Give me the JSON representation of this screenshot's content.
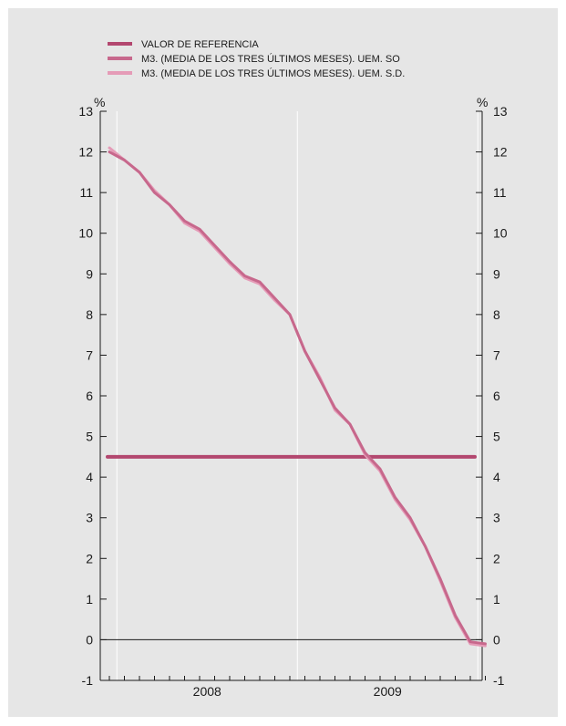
{
  "chart_data": {
    "type": "line",
    "title": "",
    "xlabel": "",
    "ylabel": "%",
    "ylabel_right": "%",
    "ylim": [
      -1,
      13
    ],
    "y_ticks": [
      "-1",
      "0",
      "1",
      "2",
      "3",
      "4",
      "5",
      "6",
      "7",
      "8",
      "9",
      "10",
      "11",
      "12",
      "13"
    ],
    "x_ticks": [
      "2008",
      "2009"
    ],
    "grid": true,
    "legend_position": "top-left",
    "colors": {
      "background": "#e6e6e6",
      "reference": "#b3476f",
      "series_so": "#c7688c",
      "series_sd": "#e59bb7"
    },
    "x": [
      "2007-12",
      "2008-01",
      "2008-02",
      "2008-03",
      "2008-04",
      "2008-05",
      "2008-06",
      "2008-07",
      "2008-08",
      "2008-09",
      "2008-10",
      "2008-11",
      "2008-12",
      "2009-01",
      "2009-02",
      "2009-03",
      "2009-04",
      "2009-05",
      "2009-06",
      "2009-07",
      "2009-08",
      "2009-09",
      "2009-10",
      "2009-11",
      "2009-12",
      "2010-01"
    ],
    "series": [
      {
        "name": "VALOR DE REFERENCIA",
        "values": [
          4.5,
          4.5,
          4.5,
          4.5,
          4.5,
          4.5,
          4.5,
          4.5,
          4.5,
          4.5,
          4.5,
          4.5,
          4.5,
          4.5,
          4.5,
          4.5,
          4.5,
          4.5,
          4.5,
          4.5,
          4.5,
          4.5,
          4.5,
          4.5,
          4.5,
          4.5
        ]
      },
      {
        "name": "M3. (MEDIA DE LOS TRES ÚLTIMOS MESES). UEM. SO",
        "values": [
          12.0,
          11.8,
          11.5,
          11.0,
          10.7,
          10.3,
          10.1,
          9.7,
          9.3,
          8.95,
          8.8,
          8.4,
          8.0,
          7.1,
          6.4,
          5.7,
          5.3,
          4.6,
          4.2,
          3.5,
          3.0,
          2.3,
          1.5,
          0.6,
          -0.05,
          -0.1
        ]
      },
      {
        "name": "M3. (MEDIA DE LOS TRES ÚLTIMOS MESES). UEM. S.D.",
        "values": [
          12.1,
          11.8,
          11.5,
          11.05,
          10.7,
          10.25,
          10.05,
          9.65,
          9.25,
          8.9,
          8.75,
          8.35,
          8.0,
          7.1,
          6.45,
          5.65,
          5.3,
          4.55,
          4.15,
          3.45,
          2.95,
          2.3,
          1.45,
          0.55,
          -0.1,
          -0.15
        ]
      }
    ]
  }
}
